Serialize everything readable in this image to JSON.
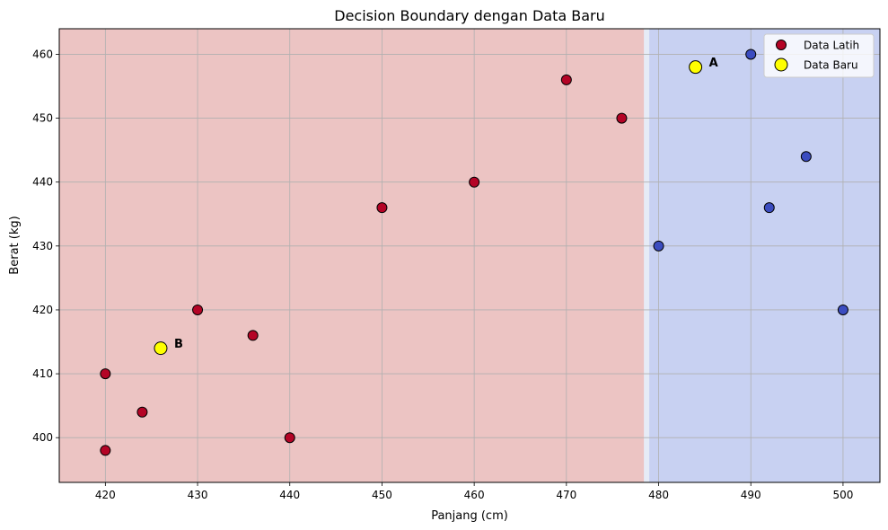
{
  "chart_data": {
    "type": "scatter",
    "title": "Decision Boundary dengan Data Baru",
    "xlabel": "Panjang (cm)",
    "ylabel": "Berat (kg)",
    "xlim": [
      415,
      504
    ],
    "ylim": [
      393,
      464
    ],
    "xticks": [
      420,
      430,
      440,
      450,
      460,
      470,
      480,
      490,
      500
    ],
    "yticks": [
      400,
      410,
      420,
      430,
      440,
      450,
      460
    ],
    "grid": true,
    "legend_position": "top-right",
    "decision_boundary_x": 478.5,
    "regions": [
      {
        "side": "left",
        "color": "#ecc4c3"
      },
      {
        "side": "right",
        "color": "#c8d1f2"
      }
    ],
    "colors": {
      "class_0": "#b40426",
      "class_1": "#3b4cc0",
      "new_point": "#ffff00"
    },
    "series": [
      {
        "name": "Data Latih",
        "points": [
          {
            "x": 420,
            "y": 398,
            "cls": 0
          },
          {
            "x": 420,
            "y": 410,
            "cls": 0
          },
          {
            "x": 424,
            "y": 404,
            "cls": 0
          },
          {
            "x": 430,
            "y": 420,
            "cls": 0
          },
          {
            "x": 436,
            "y": 416,
            "cls": 0
          },
          {
            "x": 440,
            "y": 400,
            "cls": 0
          },
          {
            "x": 450,
            "y": 436,
            "cls": 0
          },
          {
            "x": 460,
            "y": 440,
            "cls": 0
          },
          {
            "x": 470,
            "y": 456,
            "cls": 0
          },
          {
            "x": 476,
            "y": 450,
            "cls": 0
          },
          {
            "x": 480,
            "y": 430,
            "cls": 1
          },
          {
            "x": 490,
            "y": 460,
            "cls": 1
          },
          {
            "x": 492,
            "y": 436,
            "cls": 1
          },
          {
            "x": 496,
            "y": 444,
            "cls": 1
          },
          {
            "x": 500,
            "y": 420,
            "cls": 1
          }
        ]
      },
      {
        "name": "Data Baru",
        "points": [
          {
            "x": 484,
            "y": 458,
            "label": "A"
          },
          {
            "x": 426,
            "y": 414,
            "label": "B"
          }
        ]
      }
    ]
  }
}
